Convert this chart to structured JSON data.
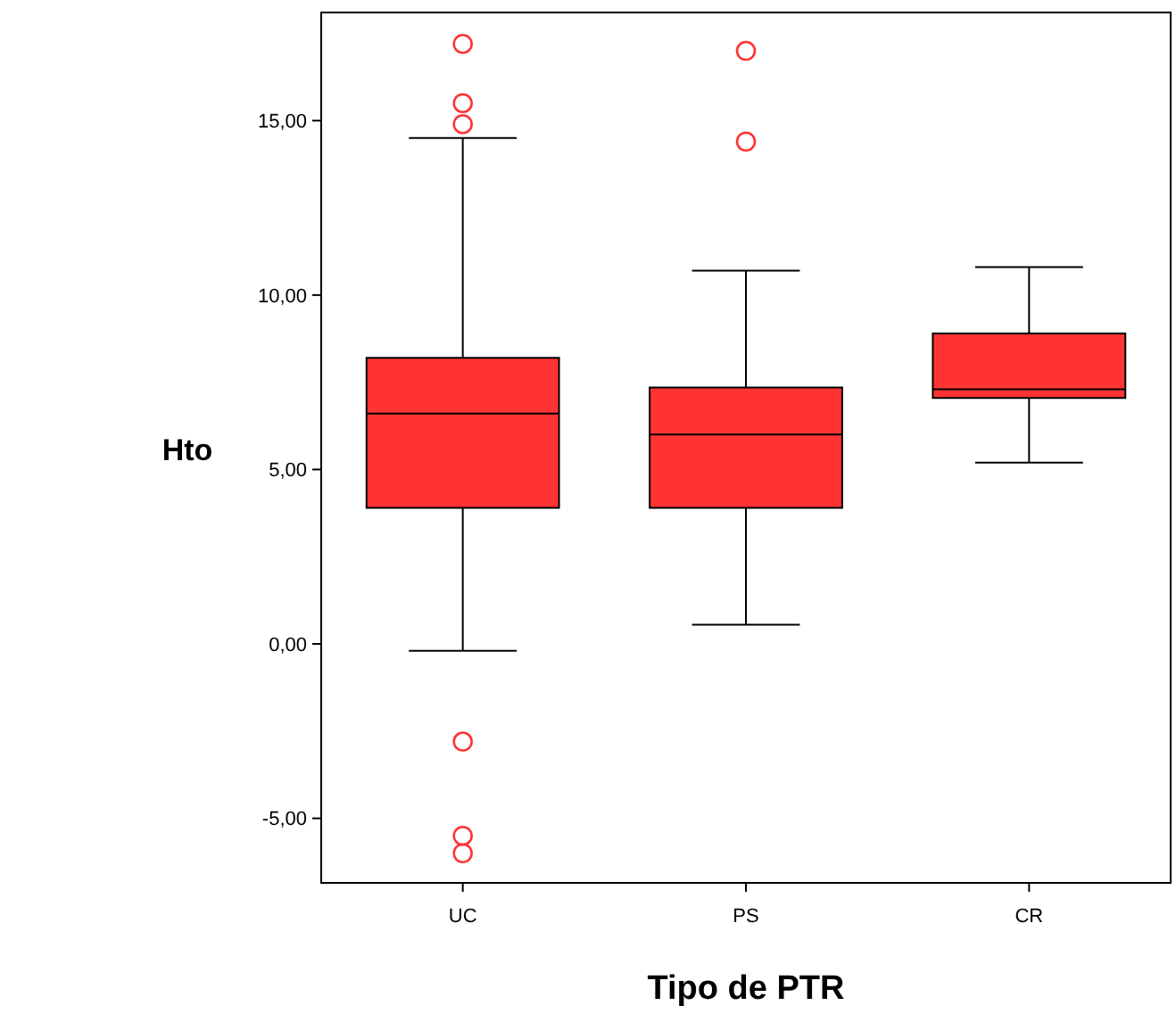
{
  "chart_data": {
    "type": "box",
    "xlabel": "Tipo de PTR",
    "ylabel": "Hto",
    "categories": [
      "UC",
      "PS",
      "CR"
    ],
    "color": "#ff3333",
    "boxes": [
      {
        "low": -0.2,
        "q1": 3.9,
        "median": 6.6,
        "q3": 8.2,
        "high": 14.5,
        "outliers": [
          17.2,
          15.5,
          14.9,
          -2.8,
          -5.5,
          -6.0
        ]
      },
      {
        "low": 0.55,
        "q1": 3.9,
        "median": 6.0,
        "q3": 7.35,
        "high": 10.7,
        "outliers": [
          17.0,
          14.4
        ]
      },
      {
        "low": 5.2,
        "q1": 7.05,
        "median": 7.3,
        "q3": 8.9,
        "high": 10.8
      }
    ],
    "ylim": [
      -6.85,
      18.1
    ],
    "yticks": [
      {
        "value": -5,
        "label": "-5,00"
      },
      {
        "value": 0,
        "label": "0,00"
      },
      {
        "value": 5,
        "label": "5,00"
      },
      {
        "value": 10,
        "label": "10,00"
      },
      {
        "value": 15,
        "label": "15,00"
      }
    ],
    "grid": false
  }
}
